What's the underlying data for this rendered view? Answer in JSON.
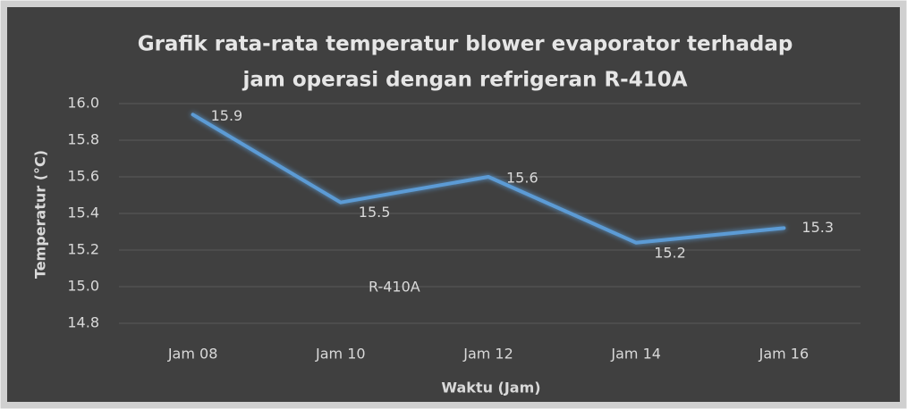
{
  "chart_data": {
    "type": "line",
    "title": [
      "Grafik rata-rata temperatur blower evaporator terhadap",
      "jam operasi dengan refrigeran R-410A"
    ],
    "x_label": "Waktu (Jam)",
    "y_label": "Temperatur (°C)",
    "categories": [
      "Jam 08",
      "Jam 10",
      "Jam 12",
      "Jam 14",
      "Jam 16"
    ],
    "series": [
      {
        "name": "R-410A",
        "color": "#5b9bd5",
        "values": [
          15.94,
          15.46,
          15.6,
          15.24,
          15.32
        ],
        "value_labels": [
          "15.9",
          "15.5",
          "15.6",
          "15.2",
          "15.3"
        ]
      }
    ],
    "ylim": [
      14.8,
      16.0
    ],
    "yticks": [
      14.8,
      {
        "value": 15.0,
        "label": "15.0"
      },
      15.2,
      15.4,
      15.6,
      15.8,
      {
        "value": 16.0,
        "label": "16.0"
      }
    ],
    "grid": true,
    "legend": "inside-bottom-left"
  }
}
